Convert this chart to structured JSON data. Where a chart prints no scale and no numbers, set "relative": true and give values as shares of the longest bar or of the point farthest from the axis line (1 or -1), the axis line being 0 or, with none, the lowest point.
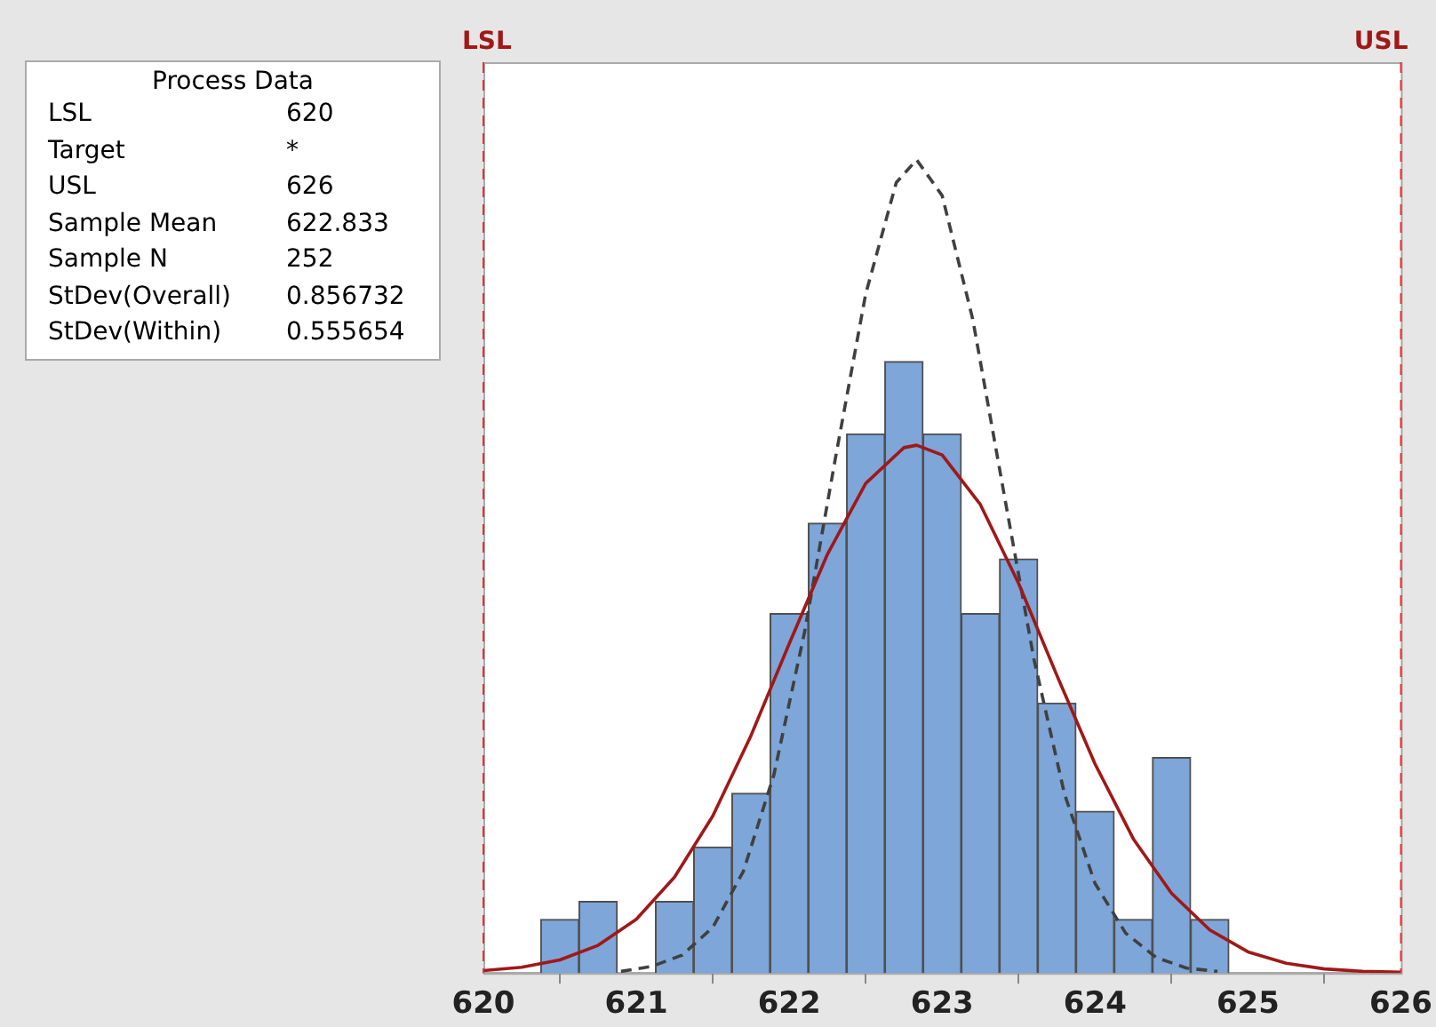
{
  "chart_data": {
    "type": "histogram",
    "relative": true,
    "bins": [
      620.375,
      620.625,
      620.875,
      621.125,
      621.375,
      621.625,
      621.875,
      622.125,
      622.375,
      622.625,
      622.875,
      623.125,
      623.375,
      623.625,
      623.875,
      624.125,
      624.375,
      624.625,
      624.875
    ],
    "values": [
      0.066,
      0.088,
      0,
      0.088,
      0.155,
      0.221,
      0.442,
      0.553,
      0.663,
      0.752,
      0.663,
      0.442,
      0.509,
      0.332,
      0.199,
      0.066,
      0.265,
      0.066
    ],
    "color": "#7ea6d8",
    "series": [
      {
        "type": "line",
        "color": "#a01818",
        "line_style": "solid",
        "x": [
          620,
          620.25,
          620.5,
          620.75,
          621,
          621.25,
          621.5,
          621.75,
          622,
          622.25,
          622.5,
          622.75,
          622.833,
          623,
          623.25,
          623.5,
          623.75,
          624,
          624.25,
          624.5,
          624.75,
          625,
          625.25,
          625.5,
          625.75,
          626
        ],
        "values": [
          0.003,
          0.007,
          0.016,
          0.034,
          0.066,
          0.118,
          0.193,
          0.292,
          0.405,
          0.515,
          0.602,
          0.646,
          0.649,
          0.637,
          0.576,
          0.479,
          0.366,
          0.257,
          0.165,
          0.098,
          0.053,
          0.026,
          0.012,
          0.005,
          0.002,
          0.001
        ]
      },
      {
        "type": "line",
        "color": "#404040",
        "line_style": "dashed",
        "x": [
          620.9,
          621.1,
          621.3,
          621.5,
          621.7,
          621.9,
          622.1,
          622.3,
          622.5,
          622.7,
          622.833,
          623,
          623.2,
          623.4,
          623.6,
          623.8,
          624,
          624.2,
          624.4,
          624.6,
          624.8
        ],
        "values": [
          0.002,
          0.008,
          0.022,
          0.056,
          0.125,
          0.244,
          0.419,
          0.631,
          0.835,
          0.972,
          1,
          0.956,
          0.804,
          0.594,
          0.386,
          0.22,
          0.11,
          0.049,
          0.019,
          0.006,
          0.002
        ]
      }
    ],
    "xlim": [
      620,
      626
    ],
    "xticks": [
      620,
      621,
      622,
      623,
      624,
      625,
      626
    ],
    "ref_lines": [
      {
        "axis": "x",
        "value": 620,
        "label": "LSL",
        "color": "#e83030",
        "line_style": "dashed"
      },
      {
        "axis": "x",
        "value": 626,
        "label": "USL",
        "color": "#e83030",
        "line_style": "dashed"
      }
    ],
    "annotations": [
      "Process Data",
      "LSL",
      "620",
      "Target",
      "*",
      "USL",
      "626",
      "Sample Mean",
      "622.833",
      "Sample N",
      "252",
      "StDev(Overall)",
      "0.856732",
      "StDev(Within)",
      "0.555654"
    ],
    "grid": false,
    "legend": false
  }
}
